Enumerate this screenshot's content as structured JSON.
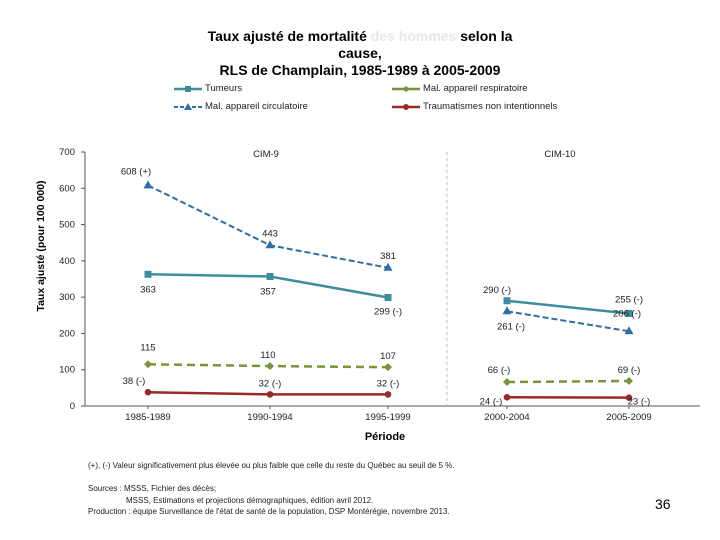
{
  "title": {
    "line1_a": "Taux ajusté de mortalité ",
    "line1_faded": "des hommes",
    "line1_b": " selon la",
    "line2": "cause,",
    "line3": "RLS de Champlain, 1985-1989 à 2005-2009"
  },
  "colors": {
    "tumeurs": "#3e8d9c",
    "respiratoire": "#7a943a",
    "circulatoire": "#2e6ea8",
    "traumatismes": "#9a2a2a"
  },
  "periods": {
    "cim9": "CIM-9",
    "cim10": "CIM-10"
  },
  "chart_data": {
    "type": "line",
    "title": "Taux ajusté de mortalité des hommes selon la cause, RLS de Champlain, 1985-1989 à 2005-2009",
    "xlabel": "Période",
    "ylabel": "Taux ajusté (pour 100 000)",
    "ylim": [
      0,
      700
    ],
    "yticks": [
      "0",
      "100",
      "200",
      "300",
      "400",
      "500",
      "600",
      "700"
    ],
    "categories": [
      "1985-1989",
      "1990-1994",
      "1995-1999",
      "2000-2004",
      "2005-2009"
    ],
    "series": [
      {
        "name": "Tumeurs",
        "key": "tumeurs",
        "values": [
          363,
          357,
          299,
          290,
          255
        ],
        "labels": [
          "363",
          "357",
          "299 (-)",
          "290 (-)",
          "255 (-)"
        ]
      },
      {
        "name": "Mal. appareil respiratoire",
        "key": "respiratoire",
        "values": [
          115,
          110,
          107,
          66,
          69
        ],
        "labels": [
          "115",
          "110",
          "107",
          "66 (-)",
          "69 (-)"
        ]
      },
      {
        "name": "Mal. appareil circulatoire",
        "key": "circulatoire",
        "values": [
          608,
          443,
          381,
          261,
          206
        ],
        "labels": [
          "608 (+)",
          "443",
          "381",
          "261 (-)",
          "206 (-)"
        ]
      },
      {
        "name": "Traumatismes non intentionnels",
        "key": "traumatismes",
        "values": [
          38,
          32,
          32,
          24,
          23
        ],
        "labels": [
          "38 (-)",
          "32 (-)",
          "32 (-)",
          "24 (-)",
          "23 (-)"
        ]
      }
    ]
  },
  "note": "(+), (-) Valeur significativement plus élevée ou plus faible que celle du reste du Québec au seuil de 5 %.",
  "sources": {
    "line1": "Sources : MSSS, Fichier des décès;",
    "line2": "MSSS, Estimations et projections démographiques, édition avril 2012.",
    "line3": "Production : équipe Surveillance de l'état de santé de la population, DSP Montérégie, novembre 2013."
  },
  "page_number": "36"
}
